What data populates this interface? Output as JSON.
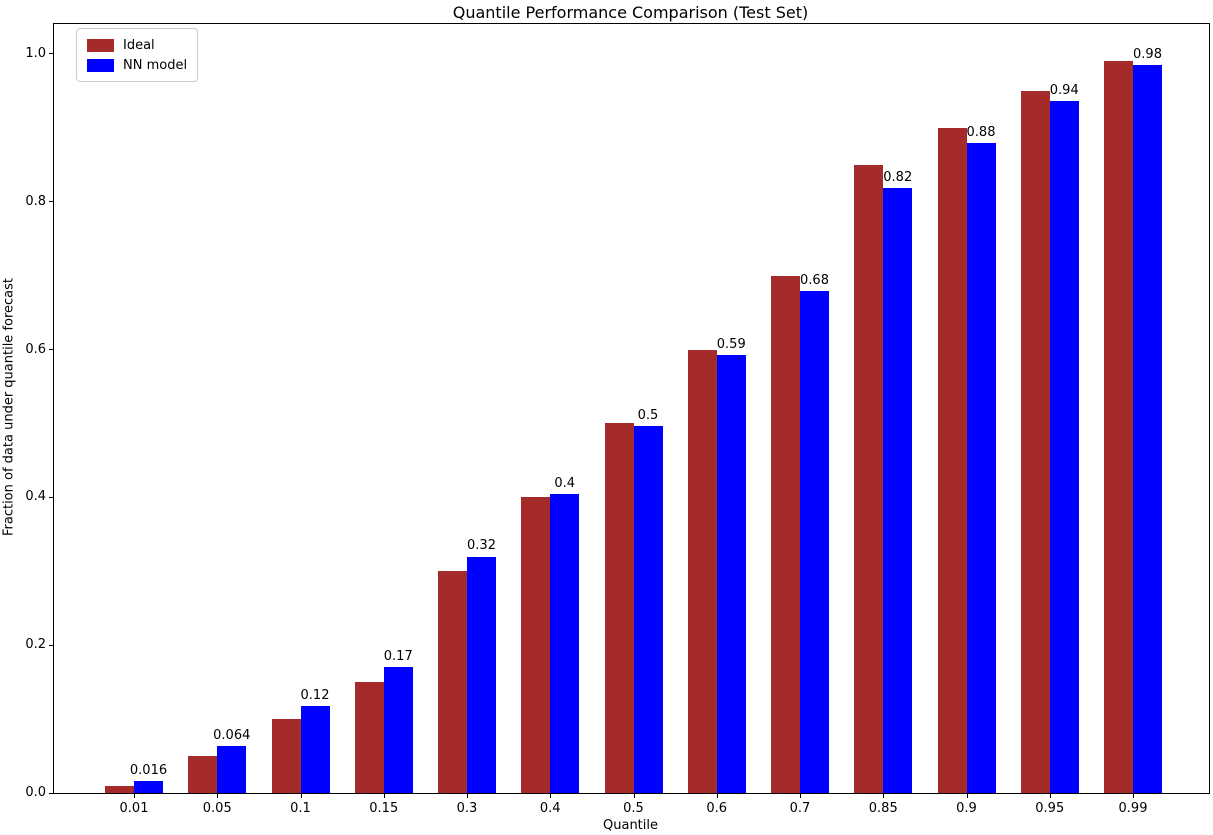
{
  "chart_data": {
    "type": "bar",
    "title": "Quantile Performance Comparison (Test Set)",
    "xlabel": "Quantile",
    "ylabel": "Fraction of data under quantile forecast",
    "categories": [
      "0.01",
      "0.05",
      "0.1",
      "0.15",
      "0.3",
      "0.4",
      "0.5",
      "0.6",
      "0.7",
      "0.85",
      "0.9",
      "0.95",
      "0.99"
    ],
    "series": [
      {
        "name": "Ideal",
        "color": "#a52a2a",
        "values": [
          0.01,
          0.05,
          0.1,
          0.15,
          0.3,
          0.4,
          0.5,
          0.6,
          0.7,
          0.85,
          0.9,
          0.95,
          0.99
        ]
      },
      {
        "name": "NN model",
        "color": "#0000ff",
        "values": [
          0.016,
          0.064,
          0.118,
          0.171,
          0.32,
          0.404,
          0.497,
          0.592,
          0.679,
          0.818,
          0.879,
          0.936,
          0.985
        ],
        "value_labels": [
          "0.016",
          "0.064",
          "0.12",
          "0.17",
          "0.32",
          "0.4",
          "0.5",
          "0.59",
          "0.68",
          "0.82",
          "0.88",
          "0.94",
          "0.98"
        ]
      }
    ],
    "yticks": [
      "0.0",
      "0.2",
      "0.4",
      "0.6",
      "0.8",
      "1.0"
    ],
    "ytick_values": [
      0.0,
      0.2,
      0.4,
      0.6,
      0.8,
      1.0
    ],
    "ylim": [
      0,
      1.0405
    ],
    "grid": false,
    "legend_position": "upper left",
    "bar_label_series": "NN model"
  }
}
